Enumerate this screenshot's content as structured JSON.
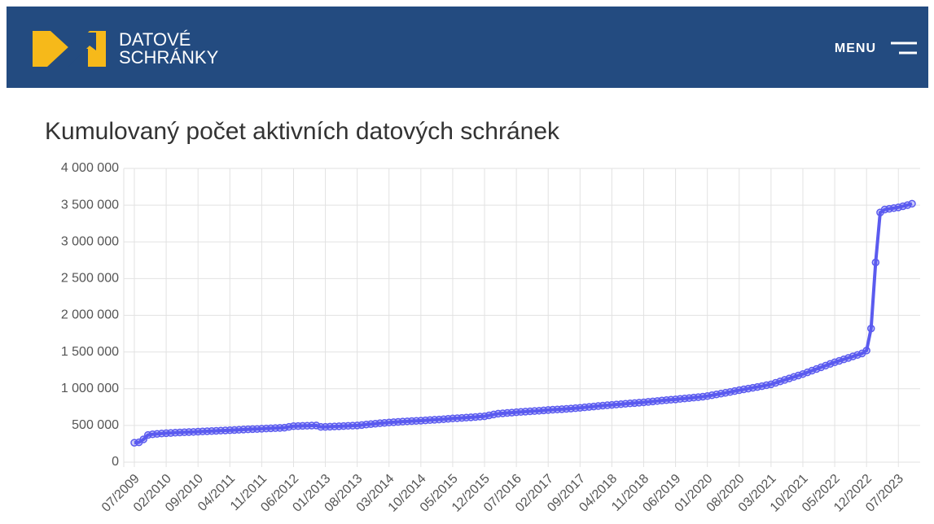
{
  "header": {
    "logo_line1": "DATOVÉ",
    "logo_line2": "SCHRÁNKY",
    "menu": "MENU"
  },
  "chart_data": {
    "type": "line",
    "title": "Kumulovaný počet aktivních datových schránek",
    "categories": [
      "07/2009",
      null,
      null,
      null,
      null,
      null,
      null,
      "02/2010",
      null,
      null,
      null,
      null,
      null,
      null,
      "09/2010",
      null,
      null,
      null,
      null,
      null,
      null,
      "04/2011",
      null,
      null,
      null,
      null,
      null,
      null,
      "11/2011",
      null,
      null,
      null,
      null,
      null,
      null,
      "06/2012",
      null,
      null,
      null,
      null,
      null,
      null,
      "01/2013",
      null,
      null,
      null,
      null,
      null,
      null,
      "08/2013",
      null,
      null,
      null,
      null,
      null,
      null,
      "03/2014",
      null,
      null,
      null,
      null,
      null,
      null,
      "10/2014",
      null,
      null,
      null,
      null,
      null,
      null,
      "05/2015",
      null,
      null,
      null,
      null,
      null,
      null,
      "12/2015",
      null,
      null,
      null,
      null,
      null,
      null,
      "07/2016",
      null,
      null,
      null,
      null,
      null,
      null,
      "02/2017",
      null,
      null,
      null,
      null,
      null,
      null,
      "09/2017",
      null,
      null,
      null,
      null,
      null,
      null,
      "04/2018",
      null,
      null,
      null,
      null,
      null,
      null,
      "11/2018",
      null,
      null,
      null,
      null,
      null,
      null,
      "06/2019",
      null,
      null,
      null,
      null,
      null,
      null,
      "01/2020",
      null,
      null,
      null,
      null,
      null,
      null,
      "08/2020",
      null,
      null,
      null,
      null,
      null,
      null,
      "03/2021",
      null,
      null,
      null,
      null,
      null,
      null,
      "10/2021",
      null,
      null,
      null,
      null,
      null,
      null,
      "05/2022",
      null,
      null,
      null,
      null,
      null,
      null,
      "12/2022",
      null,
      null,
      null,
      null,
      null,
      null,
      "07/2023",
      null,
      null,
      null
    ],
    "series": [
      {
        "color": "#5b5bef",
        "values": [
          265000,
          270000,
          310000,
          370000,
          380000,
          385000,
          390000,
          395000,
          398000,
          401000,
          404000,
          407000,
          410000,
          412000,
          415000,
          418000,
          421000,
          424000,
          427000,
          430000,
          432000,
          435000,
          438000,
          441000,
          444000,
          447000,
          450000,
          452000,
          455000,
          458000,
          461000,
          464000,
          467000,
          470000,
          480000,
          490000,
          492000,
          494000,
          496000,
          498000,
          500000,
          480000,
          480000,
          483000,
          486000,
          489000,
          492000,
          495000,
          497000,
          500000,
          506000,
          512000,
          518000,
          524000,
          530000,
          535000,
          540000,
          544000,
          548000,
          552000,
          556000,
          560000,
          562000,
          565000,
          569000,
          573000,
          577000,
          581000,
          585000,
          590000,
          595000,
          599000,
          603000,
          607000,
          611000,
          615000,
          620000,
          625000,
          637000,
          649000,
          660000,
          665000,
          670000,
          675000,
          680000,
          684000,
          688000,
          692000,
          696000,
          700000,
          705000,
          710000,
          714000,
          718000,
          722000,
          726000,
          730000,
          735000,
          740000,
          746000,
          752000,
          758000,
          764000,
          770000,
          775000,
          780000,
          785000,
          790000,
          795000,
          800000,
          805000,
          810000,
          815000,
          821000,
          827000,
          833000,
          839000,
          845000,
          850000,
          855000,
          861000,
          867000,
          873000,
          879000,
          885000,
          892000,
          900000,
          911000,
          922000,
          933000,
          944000,
          955000,
          968000,
          980000,
          991000,
          1002000,
          1013000,
          1024000,
          1035000,
          1048000,
          1060000,
          1080000,
          1100000,
          1120000,
          1140000,
          1160000,
          1180000,
          1200000,
          1223000,
          1246000,
          1269000,
          1292000,
          1315000,
          1338000,
          1360000,
          1380000,
          1400000,
          1420000,
          1440000,
          1460000,
          1480000,
          1520000,
          1820000,
          2720000,
          3400000,
          3440000,
          3450000,
          3460000,
          3470000,
          3485000,
          3500000,
          3520000
        ]
      }
    ],
    "ylim": [
      0,
      4000000
    ],
    "yticks": [
      0,
      {
        "value": 500000,
        "label": "500 000"
      },
      {
        "value": 1000000,
        "label": "1 000 000"
      },
      {
        "value": 1500000,
        "label": "1 500 000"
      },
      {
        "value": 2000000,
        "label": "2 000 000"
      },
      {
        "value": 2500000,
        "label": "2 500 000"
      },
      {
        "value": 3000000,
        "label": "3 000 000"
      },
      {
        "value": 3500000,
        "label": "3 500 000"
      },
      {
        "value": 4000000,
        "label": "4 000 000"
      }
    ],
    "grid": true
  }
}
